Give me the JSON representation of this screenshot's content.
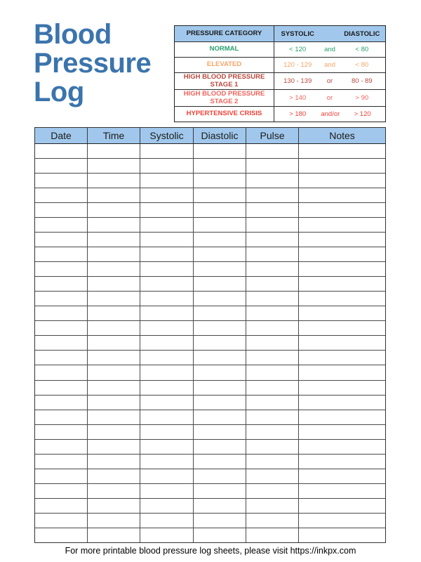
{
  "title": {
    "text": "Blood Pressure Log"
  },
  "colors": {
    "title_blue": "#3b74ad",
    "header_fill": "#a1c8ec",
    "normal_green": "#28a06c",
    "elevated_orange": "#f5a567",
    "stage1_red": "#b64a3e",
    "stage2_red": "#f2635c",
    "crisis_red": "#ef4136"
  },
  "reference_table": {
    "header": {
      "category": "PRESSURE CATEGORY",
      "systolic": "SYSTOLIC",
      "diastolic": "DIASTOLIC"
    },
    "rows": [
      {
        "category": "NORMAL",
        "systolic": "< 120",
        "connector": "and",
        "diastolic": "< 80",
        "color": "#28a06c"
      },
      {
        "category": "ELEVATED",
        "systolic": "120 - 129",
        "connector": "and",
        "diastolic": "< 80",
        "color": "#f5a567"
      },
      {
        "category": "HIGH BLOOD PRESSURE\nSTAGE 1",
        "systolic": "130 - 139",
        "connector": "or",
        "diastolic": "80 - 89",
        "color": "#b64a3e"
      },
      {
        "category": "HIGH BLOOD PRESSURE\nSTAGE 2",
        "systolic": "> 140",
        "connector": "or",
        "diastolic": "> 90",
        "color": "#f2635c"
      },
      {
        "category": "HYPERTENSIVE CRISIS",
        "systolic": "> 180",
        "connector": "and/or",
        "diastolic": "> 120",
        "color": "#ef4136"
      }
    ]
  },
  "log_table": {
    "headers": [
      "Date",
      "Time",
      "Systolic",
      "Diastolic",
      "Pulse",
      "Notes"
    ],
    "empty_rows": 27
  },
  "footer": {
    "text": "For more printable blood pressure log sheets, please visit https://inkpx.com"
  }
}
